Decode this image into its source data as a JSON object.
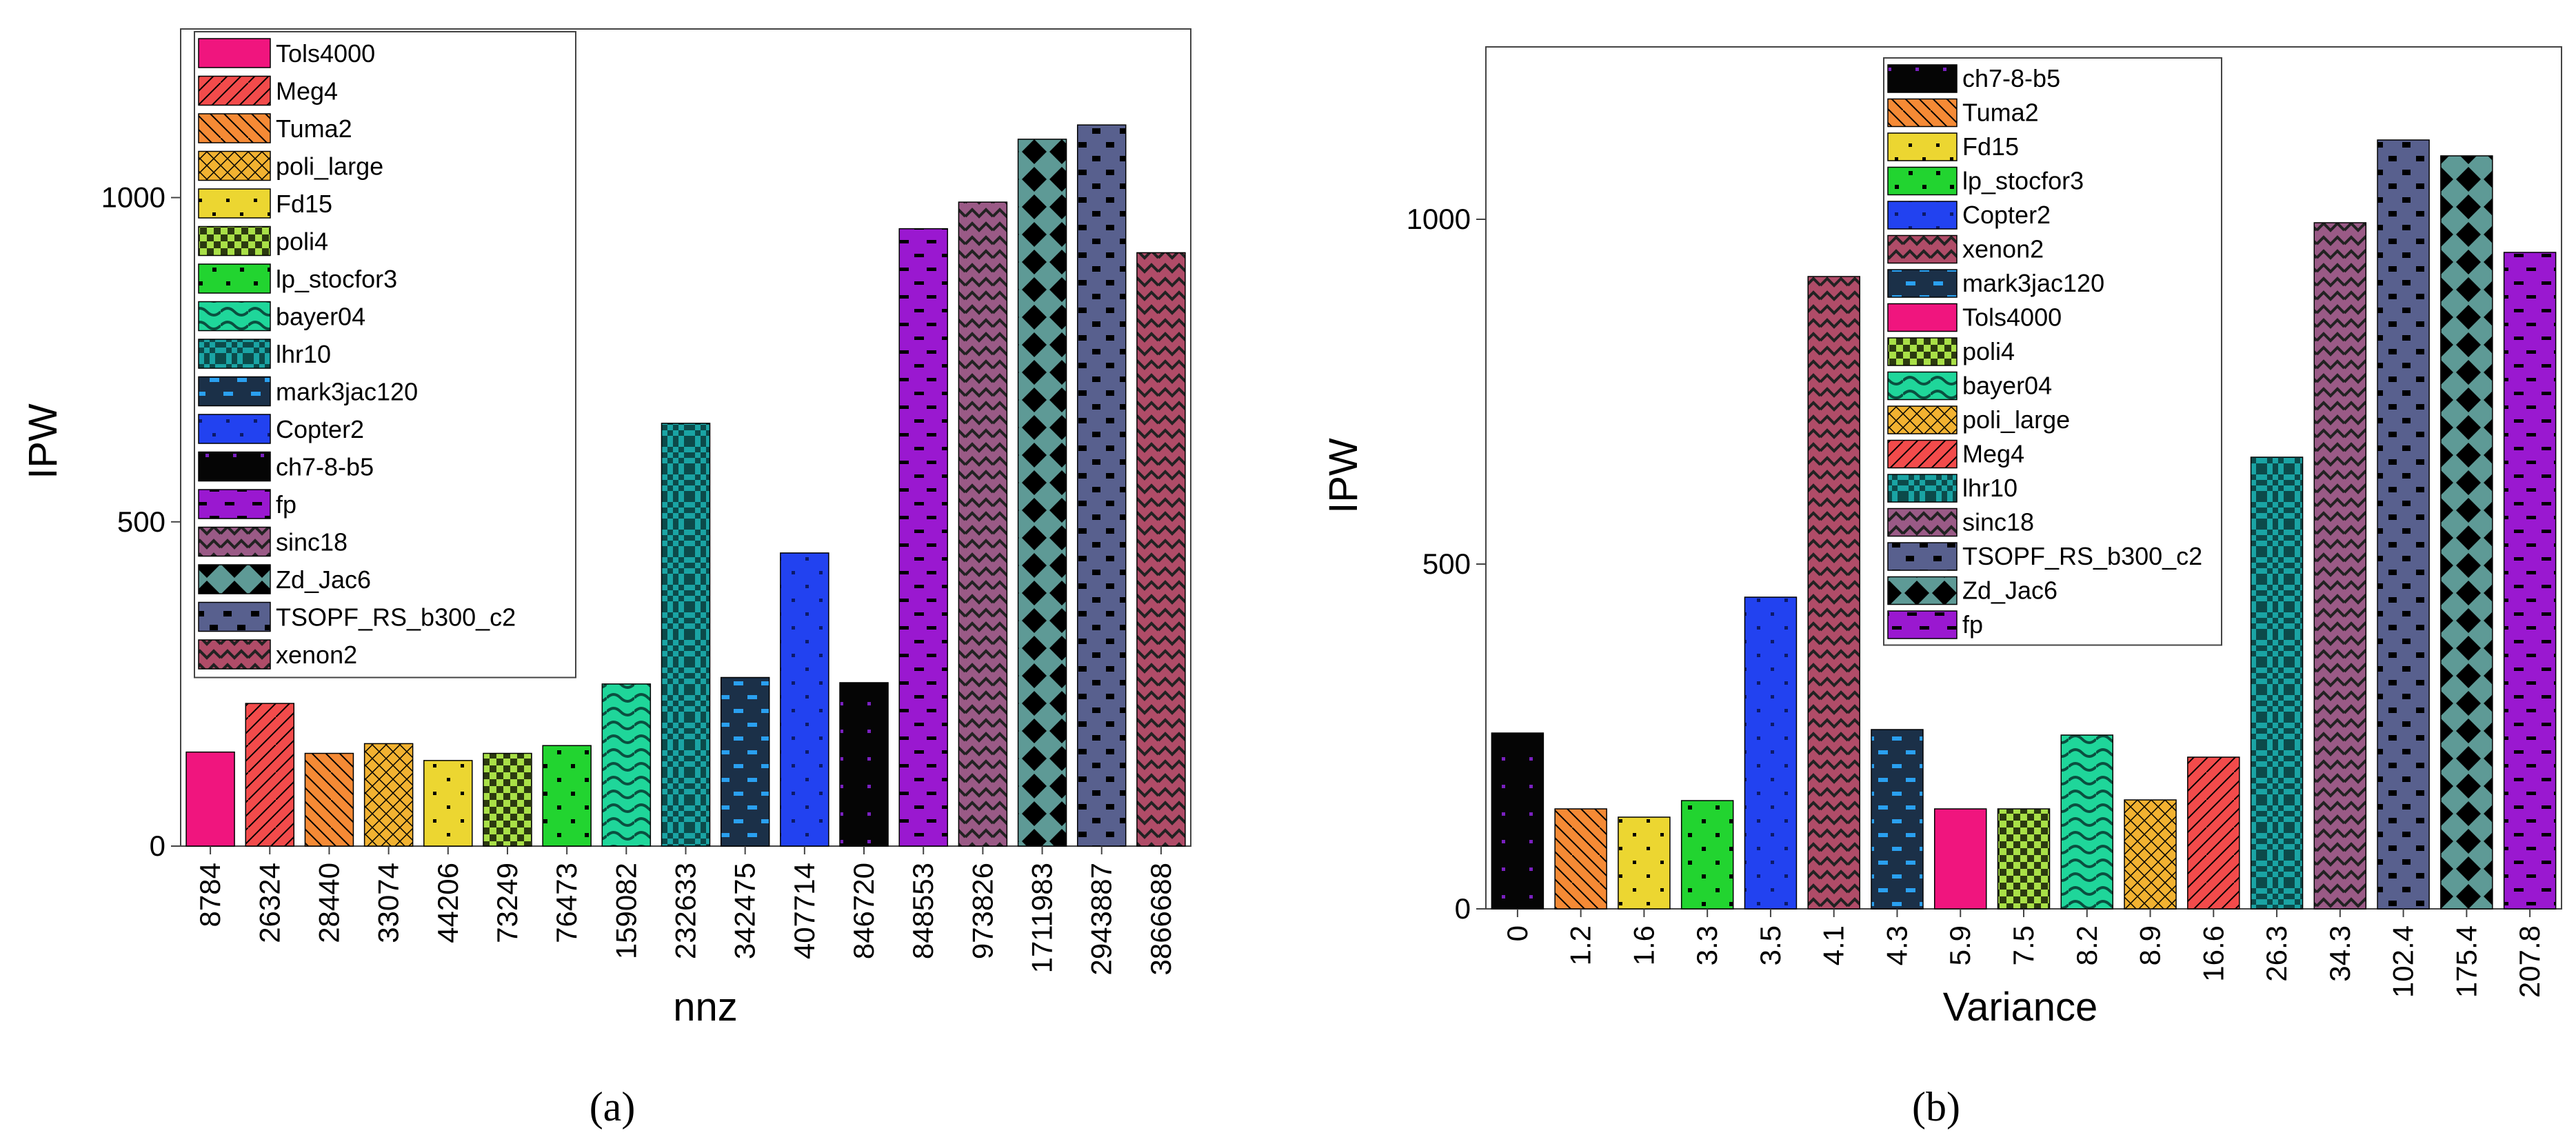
{
  "chart_data": [
    {
      "type": "bar",
      "panel_label": "(a)",
      "xlabel": "nnz",
      "ylabel": "IPW",
      "ylim": [
        0,
        1260
      ],
      "yticks": [
        0,
        500,
        1000
      ],
      "categories": [
        "8784",
        "26324",
        "28440",
        "33074",
        "44206",
        "73249",
        "76473",
        "159082",
        "232633",
        "342475",
        "407714",
        "846720",
        "848553",
        "973826",
        "1711983",
        "2943887",
        "3866688"
      ],
      "series_names": [
        "Tols4000",
        "Meg4",
        "Tuma2",
        "poli_large",
        "Fd15",
        "poli4",
        "lp_stocfor3",
        "bayer04",
        "lhr10",
        "mark3jac120",
        "Copter2",
        "ch7-8-b5",
        "fp",
        "sinc18",
        "Zd_Jac6",
        "TSOPF_RS_b300_c2",
        "xenon2"
      ],
      "values": [
        145,
        220,
        143,
        158,
        132,
        143,
        155,
        250,
        652,
        260,
        452,
        252,
        952,
        993,
        1090,
        1112,
        915
      ],
      "legend": [
        "Tols4000",
        "Meg4",
        "Tuma2",
        "poli_large",
        "Fd15",
        "poli4",
        "lp_stocfor3",
        "bayer04",
        "lhr10",
        "mark3jac120",
        "Copter2",
        "ch7-8-b5",
        "fp",
        "sinc18",
        "Zd_Jac6",
        "TSOPF_RS_b300_c2",
        "xenon2"
      ],
      "legend_position": "top-left"
    },
    {
      "type": "bar",
      "panel_label": "(b)",
      "xlabel": "Variance",
      "ylabel": "IPW",
      "ylim": [
        0,
        1250
      ],
      "yticks": [
        0,
        500,
        1000
      ],
      "categories": [
        "0",
        "1.2",
        "1.6",
        "3.3",
        "3.5",
        "4.1",
        "4.3",
        "5.9",
        "7.5",
        "8.2",
        "8.9",
        "16.6",
        "26.3",
        "34.3",
        "102.4",
        "175.4",
        "207.8"
      ],
      "series_names": [
        "ch7-8-b5",
        "Tuma2",
        "Fd15",
        "lp_stocfor3",
        "Copter2",
        "xenon2",
        "mark3jac120",
        "Tols4000",
        "poli4",
        "bayer04",
        "poli_large",
        "Meg4",
        "lhr10",
        "sinc18",
        "TSOPF_RS_b300_c2",
        "Zd_Jac6",
        "fp"
      ],
      "values": [
        255,
        145,
        133,
        157,
        452,
        917,
        260,
        145,
        145,
        252,
        158,
        220,
        655,
        995,
        1115,
        1092,
        952
      ],
      "legend": [
        "ch7-8-b5",
        "Tuma2",
        "Fd15",
        "lp_stocfor3",
        "Copter2",
        "xenon2",
        "mark3jac120",
        "Tols4000",
        "poli4",
        "bayer04",
        "poli_large",
        "Meg4",
        "lhr10",
        "sinc18",
        "TSOPF_RS_b300_c2",
        "Zd_Jac6",
        "fp"
      ],
      "legend_position": "top-center"
    }
  ],
  "styles": {
    "Tols4000": {
      "color": "#f0157e",
      "pattern": "none"
    },
    "Meg4": {
      "color": "#f24b4b",
      "pattern": "diag-right"
    },
    "Tuma2": {
      "color": "#f58a35",
      "pattern": "diag-left"
    },
    "poli_large": {
      "color": "#f2b231",
      "pattern": "crosshatch"
    },
    "Fd15": {
      "color": "#ecd631",
      "pattern": "sparse-dots"
    },
    "poli4": {
      "color": "#a9e047",
      "pattern": "checker"
    },
    "lp_stocfor3": {
      "color": "#22d430",
      "pattern": "dots"
    },
    "bayer04": {
      "color": "#1fd69a",
      "pattern": "waves"
    },
    "lhr10": {
      "color": "#1aa4a4",
      "pattern": "fine-checker"
    },
    "mark3jac120": {
      "color": "#1b3048",
      "pattern": "blue-dashes"
    },
    "Copter2": {
      "color": "#2242f0",
      "pattern": "dots-dark"
    },
    "ch7-8-b5": {
      "color": "#050505",
      "pattern": "purple-dots"
    },
    "fp": {
      "color": "#9a18d0",
      "pattern": "dashes"
    },
    "sinc18": {
      "color": "#9a5a86",
      "pattern": "chevron"
    },
    "Zd_Jac6": {
      "color": "#5e9a96",
      "pattern": "diamonds"
    },
    "TSOPF_RS_b300_c2": {
      "color": "#58608e",
      "pattern": "blocks"
    },
    "xenon2": {
      "color": "#b04c68",
      "pattern": "chevron"
    }
  }
}
